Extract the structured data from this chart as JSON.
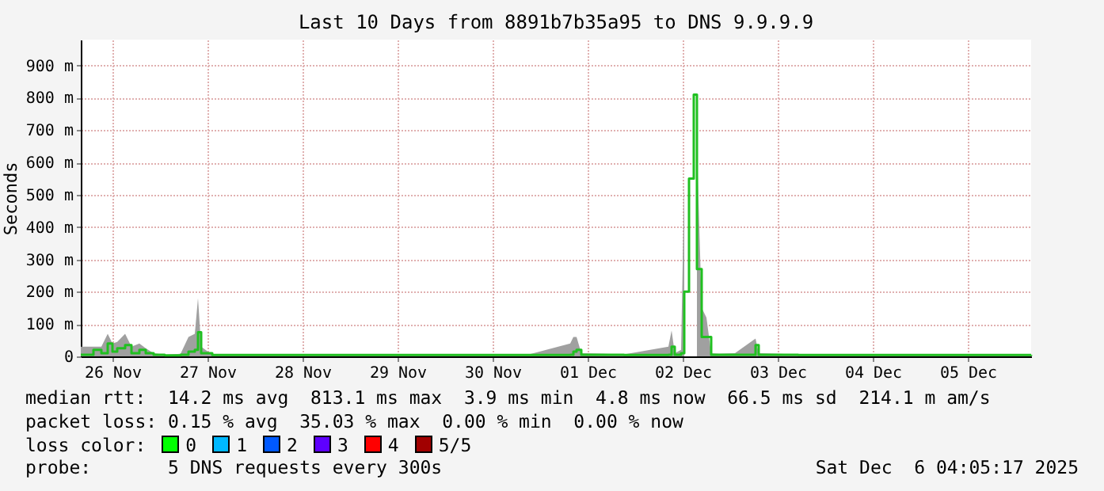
{
  "chart_data": {
    "type": "line",
    "title": "Last 10 Days from 8891b7b35a95 to DNS 9.9.9.9",
    "ylabel": "Seconds",
    "x": [
      "2025-11-26T04:00",
      "2025-11-26T07:12",
      "2025-11-26T09:12",
      "2025-11-26T10:48",
      "2025-11-26T12:00",
      "2025-11-26T13:12",
      "2025-11-26T15:12",
      "2025-11-26T16:48",
      "2025-11-26T18:48",
      "2025-11-26T20:24",
      "2025-11-26T22:24",
      "2025-11-27T01:12",
      "2025-11-27T05:12",
      "2025-11-27T07:12",
      "2025-11-27T08:48",
      "2025-11-27T09:36",
      "2025-11-27T10:24",
      "2025-11-27T13:12",
      "2025-11-28T09:12",
      "2025-11-29T09:12",
      "2025-11-30T01:12",
      "2025-11-30T21:12",
      "2025-12-01T07:36",
      "2025-12-01T08:24",
      "2025-12-01T09:12",
      "2025-12-01T10:24",
      "2025-12-01T21:12",
      "2025-12-02T08:24",
      "2025-12-02T09:12",
      "2025-12-02T10:00",
      "2025-12-02T11:36",
      "2025-12-02T12:24",
      "2025-12-02T13:36",
      "2025-12-02T14:48",
      "2025-12-02T15:36",
      "2025-12-02T16:48",
      "2025-12-02T18:00",
      "2025-12-02T19:12",
      "2025-12-02T21:12",
      "2025-12-03T01:12",
      "2025-12-03T06:24",
      "2025-12-03T07:12",
      "2025-12-03T17:12",
      "2025-12-04T09:12",
      "2025-12-05T01:12",
      "2025-12-05T17:12",
      "2025-12-06T04:00"
    ],
    "series": [
      {
        "type": "area",
        "color": "#a0a0a0",
        "values": [
          30,
          30,
          30,
          70,
          40,
          45,
          70,
          30,
          40,
          25,
          10,
          5,
          8,
          60,
          70,
          180,
          30,
          5,
          6,
          6,
          6,
          6,
          40,
          60,
          60,
          10,
          6,
          30,
          80,
          10,
          20,
          550,
          null,
          null,
          650,
          150,
          120,
          10,
          8,
          10,
          55,
          10,
          6,
          6,
          6,
          6,
          6
        ]
      },
      {
        "type": "line",
        "color": "#20c020",
        "values": [
          5,
          20,
          10,
          40,
          15,
          25,
          35,
          10,
          20,
          10,
          5,
          3,
          5,
          15,
          20,
          75,
          10,
          4,
          4,
          4,
          4,
          4,
          5,
          15,
          20,
          5,
          4,
          5,
          30,
          5,
          10,
          200,
          550,
          810,
          270,
          60,
          60,
          5,
          5,
          5,
          35,
          5,
          4,
          4,
          4,
          4,
          5
        ]
      }
    ],
    "xlim": [
      "2025-11-26T04:00",
      "2025-12-06T04:00"
    ],
    "xticks": [
      {
        "value": "2025-11-26T12:00",
        "label": "26 Nov"
      },
      {
        "value": "2025-11-27T12:00",
        "label": "27 Nov"
      },
      {
        "value": "2025-11-28T12:00",
        "label": "28 Nov"
      },
      {
        "value": "2025-11-29T12:00",
        "label": "29 Nov"
      },
      {
        "value": "2025-11-30T12:00",
        "label": "30 Nov"
      },
      {
        "value": "2025-12-01T12:00",
        "label": "01 Dec"
      },
      {
        "value": "2025-12-02T12:00",
        "label": "02 Dec"
      },
      {
        "value": "2025-12-03T12:00",
        "label": "03 Dec"
      },
      {
        "value": "2025-12-04T12:00",
        "label": "04 Dec"
      },
      {
        "value": "2025-12-05T12:00",
        "label": "05 Dec"
      }
    ],
    "ylim": [
      0,
      980
    ],
    "yticks": [
      0,
      {
        "value": 100,
        "label": "100 m"
      },
      {
        "value": 200,
        "label": "200 m"
      },
      {
        "value": 300,
        "label": "300 m"
      },
      {
        "value": 400,
        "label": "400 m"
      },
      {
        "value": 500,
        "label": "500 m"
      },
      {
        "value": 600,
        "label": "600 m"
      },
      {
        "value": 700,
        "label": "700 m"
      },
      {
        "value": 800,
        "label": "800 m"
      },
      {
        "value": 900,
        "label": "900 m"
      }
    ],
    "grid": true,
    "annotations": [
      "median rtt:  14.2 ms avg  813.1 ms max  3.9 ms min  4.8 ms now  66.5 ms sd  214.1 m am/s",
      "packet loss: 0.15 % avg  35.03 % max  0.00 % min  0.00 % now",
      "loss color:",
      "0",
      "1",
      "2",
      "3",
      "4",
      "5/5",
      "probe:       5 DNS requests every 300s",
      "Sat Dec  6 04:05:17 2025"
    ]
  }
}
